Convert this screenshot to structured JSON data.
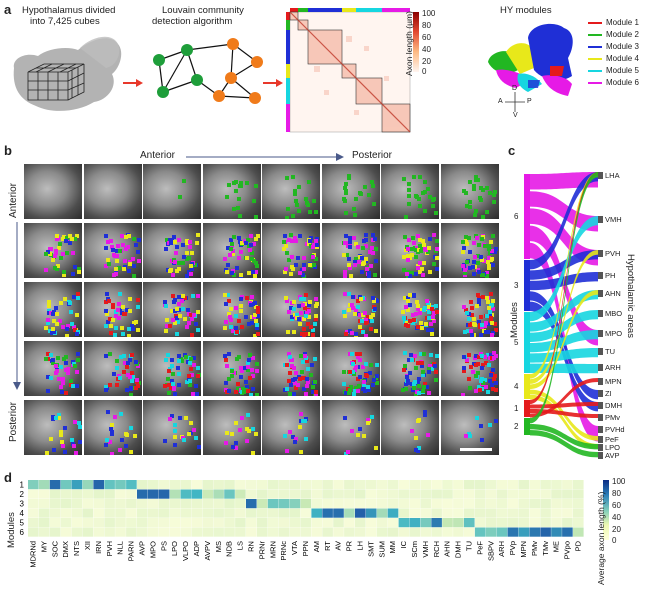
{
  "panel_a": {
    "letter": "a",
    "step1": [
      "Hypothalamus divided",
      "into 7,425 cubes"
    ],
    "step2": [
      "Louvain community",
      "detection algorithm"
    ],
    "colorbar": {
      "title": "Axon length (µm)",
      "ticks": [
        "100",
        "80",
        "60",
        "40",
        "20",
        "0"
      ]
    },
    "hy_title": "HY modules",
    "modules": [
      {
        "name": "Module 1",
        "color": "#e41a1c"
      },
      {
        "name": "Module 2",
        "color": "#22b722"
      },
      {
        "name": "Module 3",
        "color": "#1f2fd6"
      },
      {
        "name": "Module 4",
        "color": "#e8e81a"
      },
      {
        "name": "Module 5",
        "color": "#16d6e0"
      },
      {
        "name": "Module 6",
        "color": "#e61ae6"
      }
    ],
    "compass": {
      "d": "D",
      "v": "V",
      "a": "A",
      "p": "P"
    }
  },
  "panel_b": {
    "letter": "b",
    "anterior": "Anterior",
    "posterior": "Posterior",
    "left_anterior": "Anterior",
    "left_posterior": "Posterior"
  },
  "panel_c": {
    "letter": "c",
    "left_axis": "Modules",
    "right_axis": "Hypothalamic areas",
    "modules": [
      "6",
      "3",
      "5",
      "4",
      "1",
      "2"
    ],
    "areas": [
      "LHA",
      "VMH",
      "PVH",
      "PH",
      "AHN",
      "MBO",
      "MPO",
      "TU",
      "ARH",
      "MPN",
      "ZI",
      "DMH",
      "PMv",
      "PVHd",
      "PeF",
      "LPO",
      "AVP"
    ]
  },
  "panel_d": {
    "letter": "d",
    "ylabel": "Modules",
    "rows": [
      "1",
      "2",
      "3",
      "4",
      "5",
      "6"
    ],
    "columns": [
      "MDRNd",
      "MY",
      "SOC",
      "DMX",
      "NTS",
      "XII",
      "IRN",
      "PVH",
      "NLL",
      "PARN",
      "AVP",
      "MPO",
      "PS",
      "LPO",
      "VLPO",
      "ADP",
      "AVPV",
      "MS",
      "NDB",
      "LS",
      "RN",
      "PRNr",
      "MRN",
      "PRNc",
      "VTA",
      "PPN",
      "AM",
      "RT",
      "AV",
      "PR",
      "LH",
      "SMT",
      "SUM",
      "MM",
      "IC",
      "SCm",
      "VMH",
      "RCH",
      "AHN",
      "DMH",
      "TU",
      "PeF",
      "SBPV",
      "ARH",
      "PVp",
      "MPN",
      "PMv",
      "TMv",
      "ME",
      "PVpo",
      "PD"
    ],
    "colorbar": {
      "title": "Average axon length (%)",
      "ticks": [
        "100",
        "80",
        "60",
        "40",
        "20",
        "0"
      ]
    }
  },
  "colors": {
    "accent_red": "#e8382b",
    "heat_low": "#f7fbd9",
    "heat_high": "#0c2c84"
  }
}
